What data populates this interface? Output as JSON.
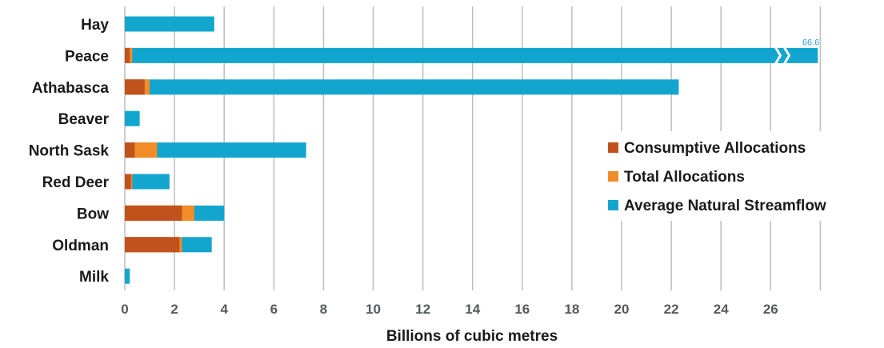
{
  "chart_data": {
    "type": "bar",
    "orientation": "horizontal",
    "stacking": "overlaid",
    "categories": [
      "Hay",
      "Peace",
      "Athabasca",
      "Beaver",
      "North Sask",
      "Red Deer",
      "Bow",
      "Oldman",
      "Milk"
    ],
    "series": [
      {
        "name": "Average Natural Streamflow",
        "color": "#12a6cf",
        "values": [
          3.6,
          66.6,
          22.3,
          0.6,
          7.3,
          1.8,
          4.0,
          3.5,
          0.2
        ]
      },
      {
        "name": "Total Allocations",
        "color": "#f28c28",
        "values": [
          0.0,
          0.3,
          1.0,
          0.0,
          1.3,
          0.3,
          2.8,
          2.3,
          0.0
        ]
      },
      {
        "name": "Consumptive Allocations",
        "color": "#c2521c",
        "values": [
          0.0,
          0.2,
          0.8,
          0.0,
          0.4,
          0.25,
          2.3,
          2.2,
          0.0
        ]
      }
    ],
    "xlabel": "Billions of cubic metres",
    "xlim": [
      0,
      28
    ],
    "xticks": [
      "0",
      "2",
      "4",
      "6",
      "8",
      "10",
      "12",
      "14",
      "16",
      "18",
      "20",
      "22",
      "24",
      "26"
    ],
    "grid": "vertical",
    "axis_break": {
      "category": "Peace",
      "label": "66.6"
    },
    "legend": {
      "placement": "right",
      "entries": [
        "Consumptive Allocations",
        "Total Allocations",
        "Average Natural Streamflow"
      ]
    }
  }
}
